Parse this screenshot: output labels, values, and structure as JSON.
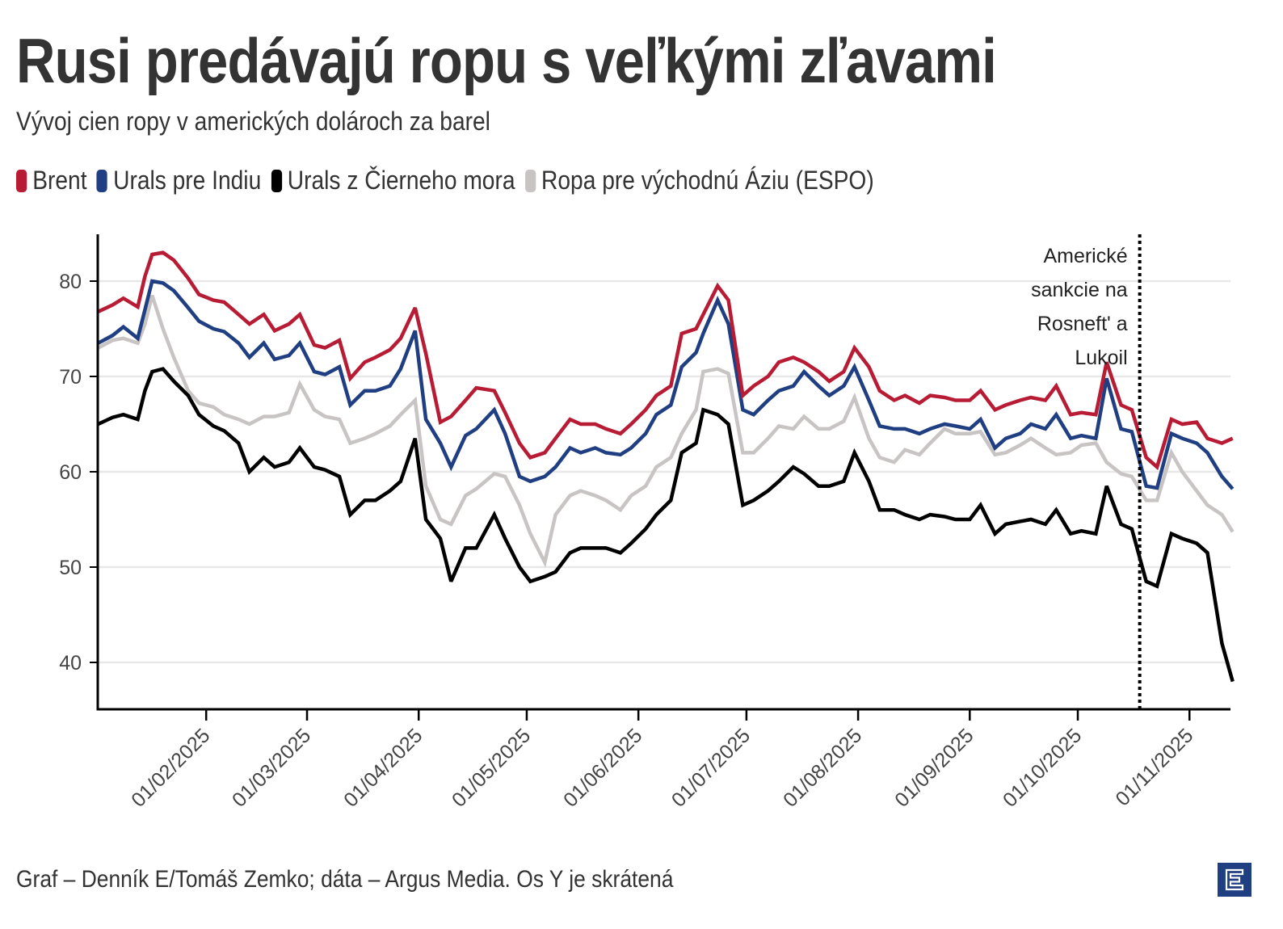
{
  "title": "Rusi predávajú ropu s veľkými zľavami",
  "subtitle": "Vývoj cien ropy v amerických dolároch za barel",
  "footer": "Graf – Denník E/Tomáš Zemko; dáta – Argus Media. Os Y je skrátená",
  "logo": {
    "icon": "denník-e-logo",
    "color": "#1f3f82"
  },
  "legend": [
    {
      "label": "Brent",
      "color": "#b81c35"
    },
    {
      "label": "Urals pre Indiu",
      "color": "#1f3f82"
    },
    {
      "label": "Urals z Čierneho mora",
      "color": "#000000"
    },
    {
      "label": "Ropa pre východnú Áziu (ESPO)",
      "color": "#c9c4c4"
    }
  ],
  "chart_data": {
    "type": "line",
    "title": "Rusi predávajú ropu s veľkými zľavami",
    "subtitle": "Vývoj cien ropy v amerických dolároch za barel",
    "xlabel": "",
    "ylabel": "",
    "ylim": [
      35,
      85
    ],
    "xlim": [
      "2025-01-02",
      "2025-11-13"
    ],
    "yticks": [
      40,
      50,
      60,
      70,
      80
    ],
    "xticks": [
      "2025-02-01",
      "2025-03-01",
      "2025-04-01",
      "2025-05-01",
      "2025-06-01",
      "2025-07-01",
      "2025-08-01",
      "2025-09-01",
      "2025-10-01",
      "2025-11-01"
    ],
    "xtick_labels": [
      "01/02/2025",
      "01/03/2025",
      "01/04/2025",
      "01/05/2025",
      "01/06/2025",
      "01/07/2025",
      "01/08/2025",
      "01/09/2025",
      "01/10/2025",
      "01/11/2025"
    ],
    "grid": "horizontal",
    "legend_position": "top-left",
    "annotation": {
      "date": "2025-10-22",
      "text": [
        "Americké",
        "sankcie na",
        "Rosneft' a",
        "Lukoil"
      ],
      "style": "dotted-vertical-line"
    },
    "x": [
      "2025-01-02",
      "2025-01-06",
      "2025-01-09",
      "2025-01-13",
      "2025-01-15",
      "2025-01-17",
      "2025-01-20",
      "2025-01-23",
      "2025-01-27",
      "2025-01-30",
      "2025-02-03",
      "2025-02-06",
      "2025-02-10",
      "2025-02-13",
      "2025-02-17",
      "2025-02-20",
      "2025-02-24",
      "2025-02-27",
      "2025-03-03",
      "2025-03-06",
      "2025-03-10",
      "2025-03-13",
      "2025-03-17",
      "2025-03-20",
      "2025-03-24",
      "2025-03-27",
      "2025-03-31",
      "2025-04-03",
      "2025-04-07",
      "2025-04-10",
      "2025-04-14",
      "2025-04-17",
      "2025-04-22",
      "2025-04-25",
      "2025-04-29",
      "2025-05-02",
      "2025-05-06",
      "2025-05-09",
      "2025-05-13",
      "2025-05-16",
      "2025-05-20",
      "2025-05-23",
      "2025-05-27",
      "2025-05-30",
      "2025-06-03",
      "2025-06-06",
      "2025-06-10",
      "2025-06-13",
      "2025-06-17",
      "2025-06-19",
      "2025-06-23",
      "2025-06-26",
      "2025-06-30",
      "2025-07-03",
      "2025-07-07",
      "2025-07-10",
      "2025-07-14",
      "2025-07-17",
      "2025-07-21",
      "2025-07-24",
      "2025-07-28",
      "2025-07-31",
      "2025-08-04",
      "2025-08-07",
      "2025-08-11",
      "2025-08-14",
      "2025-08-18",
      "2025-08-21",
      "2025-08-25",
      "2025-08-28",
      "2025-09-01",
      "2025-09-04",
      "2025-09-08",
      "2025-09-11",
      "2025-09-15",
      "2025-09-18",
      "2025-09-22",
      "2025-09-25",
      "2025-09-29",
      "2025-10-02",
      "2025-10-06",
      "2025-10-09",
      "2025-10-13",
      "2025-10-16",
      "2025-10-20",
      "2025-10-23",
      "2025-10-27",
      "2025-10-30",
      "2025-11-03",
      "2025-11-06",
      "2025-11-10",
      "2025-11-13"
    ],
    "series": [
      {
        "name": "Brent",
        "color": "#b81c35",
        "values": [
          76.8,
          77.5,
          78.2,
          77.3,
          80.5,
          82.8,
          83.0,
          82.2,
          80.3,
          78.6,
          78.0,
          77.8,
          76.5,
          75.5,
          76.5,
          74.8,
          75.5,
          76.5,
          73.3,
          73.0,
          73.8,
          69.8,
          71.5,
          72.0,
          72.8,
          74.0,
          77.2,
          72.4,
          65.2,
          65.8,
          67.5,
          68.8,
          68.5,
          66.2,
          63.0,
          61.5,
          62.0,
          63.5,
          65.5,
          65.0,
          65.0,
          64.5,
          64.0,
          65.0,
          66.5,
          68.0,
          69.0,
          74.5,
          75.0,
          76.5,
          79.5,
          78.0,
          68.0,
          69.0,
          70.0,
          71.5,
          72.0,
          71.5,
          70.5,
          69.5,
          70.5,
          73.0,
          71.0,
          68.5,
          67.5,
          68.0,
          67.2,
          68.0,
          67.8,
          67.5,
          67.5,
          68.5,
          66.5,
          67.0,
          67.5,
          67.8,
          67.5,
          69.0,
          66.0,
          66.2,
          66.0,
          71.5,
          67.0,
          66.5,
          61.5,
          60.5,
          65.5,
          65.0,
          65.2,
          63.5,
          63.0,
          63.5
        ]
      },
      {
        "name": "Urals pre Indiu",
        "color": "#1f3f82",
        "values": [
          73.5,
          74.3,
          75.2,
          74.0,
          77.0,
          80.0,
          79.8,
          79.0,
          77.2,
          75.8,
          75.0,
          74.7,
          73.5,
          72.0,
          73.5,
          71.8,
          72.2,
          73.5,
          70.5,
          70.2,
          71.0,
          67.0,
          68.5,
          68.5,
          69.0,
          70.8,
          74.8,
          65.5,
          63.0,
          60.5,
          63.8,
          64.5,
          66.5,
          64.0,
          59.5,
          59.0,
          59.5,
          60.5,
          62.5,
          62.0,
          62.5,
          62.0,
          61.8,
          62.5,
          64.0,
          66.0,
          67.0,
          71.0,
          72.5,
          74.5,
          78.0,
          75.5,
          66.5,
          66.0,
          67.5,
          68.5,
          69.0,
          70.5,
          69.0,
          68.0,
          69.0,
          71.0,
          67.5,
          64.8,
          64.5,
          64.5,
          64.0,
          64.5,
          65.0,
          64.8,
          64.5,
          65.5,
          62.5,
          63.5,
          64.0,
          65.0,
          64.5,
          66.0,
          63.5,
          63.8,
          63.5,
          69.8,
          64.5,
          64.2,
          58.5,
          58.3,
          64.0,
          63.5,
          63.0,
          62.0,
          59.5,
          58.2
        ]
      },
      {
        "name": "Urals z Čierneho mora",
        "color": "#000000",
        "values": [
          65.0,
          65.7,
          66.0,
          65.5,
          68.5,
          70.5,
          70.8,
          69.5,
          68.0,
          66.0,
          64.8,
          64.3,
          63.0,
          60.0,
          61.5,
          60.5,
          61.0,
          62.5,
          60.5,
          60.2,
          59.5,
          55.5,
          57.0,
          57.0,
          58.0,
          59.0,
          63.5,
          55.0,
          53.0,
          48.5,
          52.0,
          52.0,
          55.5,
          53.0,
          50.0,
          48.5,
          49.0,
          49.5,
          51.5,
          52.0,
          52.0,
          52.0,
          51.5,
          52.5,
          54.0,
          55.5,
          57.0,
          62.0,
          63.0,
          66.5,
          66.0,
          65.0,
          56.5,
          57.0,
          58.0,
          59.0,
          60.5,
          59.8,
          58.5,
          58.5,
          59.0,
          62.0,
          59.0,
          56.0,
          56.0,
          55.5,
          55.0,
          55.5,
          55.3,
          55.0,
          55.0,
          56.5,
          53.5,
          54.5,
          54.8,
          55.0,
          54.5,
          56.0,
          53.5,
          53.8,
          53.5,
          58.5,
          54.5,
          54.0,
          48.5,
          48.0,
          53.5,
          53.0,
          52.5,
          51.5,
          42.0,
          38.0
        ]
      },
      {
        "name": "Ropa pre východnú Áziu (ESPO)",
        "color": "#c9c4c4",
        "values": [
          73.0,
          73.8,
          74.0,
          73.5,
          75.5,
          78.5,
          75.0,
          72.0,
          68.5,
          67.2,
          66.8,
          66.0,
          65.5,
          65.0,
          65.8,
          65.8,
          66.2,
          69.2,
          66.5,
          65.8,
          65.5,
          63.0,
          63.5,
          64.0,
          64.8,
          66.0,
          67.5,
          58.5,
          55.0,
          54.5,
          57.5,
          58.2,
          59.8,
          59.5,
          56.5,
          53.5,
          50.5,
          55.5,
          57.5,
          58.0,
          57.5,
          57.0,
          56.0,
          57.5,
          58.5,
          60.5,
          61.5,
          64.0,
          66.5,
          70.5,
          70.8,
          70.3,
          62.0,
          62.0,
          63.5,
          64.8,
          64.5,
          65.8,
          64.5,
          64.5,
          65.3,
          67.8,
          63.5,
          61.5,
          61.0,
          62.3,
          61.8,
          63.0,
          64.5,
          64.0,
          64.0,
          64.2,
          61.8,
          62.0,
          62.8,
          63.5,
          62.5,
          61.8,
          62.0,
          62.8,
          63.0,
          61.0,
          59.8,
          59.5,
          57.0,
          57.0,
          62.0,
          60.0,
          58.0,
          56.5,
          55.5,
          53.7
        ]
      }
    ]
  }
}
